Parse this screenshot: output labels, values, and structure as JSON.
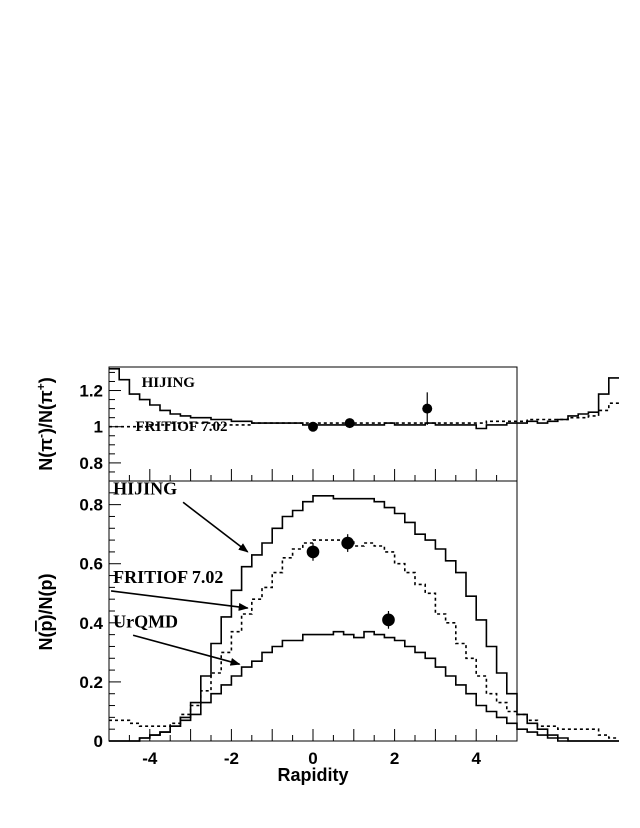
{
  "chart_data": [
    {
      "type": "line",
      "panel": "top",
      "xlabel": "",
      "ylabel": "N(π⁻)/N(π⁺)",
      "ylabel_parts": {
        "pre": "N(π",
        "sup1": "-",
        "mid": ")/N(π",
        "sup2": "+",
        "post": ")"
      },
      "xlim": [
        -5,
        5
      ],
      "ylim": [
        0.7,
        1.33
      ],
      "ytick_labels": [
        {
          "v": 0.8,
          "t": "0.8"
        },
        {
          "v": 1.0,
          "t": "1"
        },
        {
          "v": 1.2,
          "t": "1.2"
        }
      ],
      "annotations": [
        {
          "text": "HIJING",
          "x": -4.2,
          "y": 1.22
        },
        {
          "text": "FRITIOF 7.02",
          "x": -4.35,
          "y": 0.975
        }
      ],
      "series": [
        {
          "name": "HIJING",
          "style": "solid",
          "step": 0.25,
          "x0": -5,
          "values": [
            1.32,
            1.26,
            1.18,
            1.15,
            1.12,
            1.09,
            1.07,
            1.06,
            1.05,
            1.05,
            1.04,
            1.04,
            1.03,
            1.03,
            1.02,
            1.02,
            1.02,
            1.02,
            1.02,
            1.01,
            1.01,
            1.01,
            1.01,
            1.01,
            1.01,
            1.01,
            1.01,
            1.02,
            1.01,
            1.01,
            1.01,
            1.02,
            1.01,
            1.01,
            1.01,
            1.01,
            0.99,
            1.01,
            1.01,
            1.02,
            1.02,
            1.03,
            1.02,
            1.03,
            1.04,
            1.06,
            1.07,
            1.08,
            1.18,
            1.27
          ]
        },
        {
          "name": "FRITIOF 7.02",
          "style": "dotted",
          "step": 0.25,
          "x0": -5,
          "values": [
            1.0,
            1.0,
            1.0,
            1.0,
            1.01,
            1.01,
            1.02,
            1.02,
            1.02,
            1.02,
            1.01,
            1.01,
            1.01,
            1.01,
            1.02,
            1.02,
            1.02,
            1.02,
            1.02,
            1.02,
            1.02,
            1.02,
            1.02,
            1.02,
            1.02,
            1.02,
            1.02,
            1.02,
            1.02,
            1.02,
            1.02,
            1.02,
            1.02,
            1.02,
            1.02,
            1.02,
            1.02,
            1.03,
            1.03,
            1.03,
            1.03,
            1.04,
            1.04,
            1.04,
            1.04,
            1.05,
            1.05,
            1.06,
            1.09,
            1.13
          ]
        },
        {
          "name": "data",
          "style": "points",
          "marker_size": 6,
          "points": [
            {
              "x": 0.0,
              "y": 1.0,
              "err": 0.02
            },
            {
              "x": 0.9,
              "y": 1.02,
              "err": 0.02
            },
            {
              "x": 2.8,
              "y": 1.1,
              "err": 0.09
            }
          ]
        }
      ]
    },
    {
      "type": "line",
      "panel": "bottom",
      "xlabel": "Rapidity",
      "ylabel": "N(p̄)/N(p)",
      "ylabel_parts": {
        "pre": "N(",
        "bar": "p",
        "post": ")/N(p)"
      },
      "xlim": [
        -5,
        5
      ],
      "ylim": [
        0,
        0.88
      ],
      "xtick_labels": [
        {
          "v": -4,
          "t": "-4"
        },
        {
          "v": -2,
          "t": "-2"
        },
        {
          "v": 0,
          "t": "0"
        },
        {
          "v": 2,
          "t": "2"
        },
        {
          "v": 4,
          "t": "4"
        }
      ],
      "ytick_labels": [
        {
          "v": 0,
          "t": "0"
        },
        {
          "v": 0.2,
          "t": "0.2"
        },
        {
          "v": 0.4,
          "t": "0.4"
        },
        {
          "v": 0.6,
          "t": "0.6"
        },
        {
          "v": 0.8,
          "t": "0.8"
        }
      ],
      "annotations": [
        {
          "text": "HIJING",
          "x": -4.9,
          "y": 0.835,
          "arrow_to": [
            -1.6,
            0.64
          ]
        },
        {
          "text": "FRITIOF 7.02",
          "x": -4.9,
          "y": 0.535,
          "arrow_to": [
            -1.6,
            0.45
          ]
        },
        {
          "text": "UrQMD",
          "x": -4.9,
          "y": 0.385,
          "arrow_to": [
            -1.8,
            0.26
          ]
        }
      ],
      "series": [
        {
          "name": "HIJING",
          "style": "solid",
          "step": 0.25,
          "x0": -5,
          "values": [
            0.0,
            0.0,
            0.0,
            0.01,
            0.02,
            0.03,
            0.05,
            0.08,
            0.13,
            0.22,
            0.33,
            0.42,
            0.51,
            0.59,
            0.63,
            0.67,
            0.72,
            0.76,
            0.78,
            0.81,
            0.83,
            0.83,
            0.82,
            0.82,
            0.82,
            0.82,
            0.81,
            0.79,
            0.77,
            0.74,
            0.7,
            0.68,
            0.65,
            0.61,
            0.57,
            0.49,
            0.41,
            0.32,
            0.23,
            0.16,
            0.09,
            0.06,
            0.04,
            0.02,
            0.01,
            0.0,
            0.0,
            0.0,
            0.0,
            0.0
          ]
        },
        {
          "name": "FRITIOF 7.02",
          "style": "dotted",
          "step": 0.25,
          "x0": -5,
          "values": [
            0.07,
            0.07,
            0.06,
            0.05,
            0.05,
            0.05,
            0.06,
            0.09,
            0.12,
            0.17,
            0.23,
            0.3,
            0.37,
            0.43,
            0.48,
            0.52,
            0.57,
            0.62,
            0.65,
            0.67,
            0.68,
            0.68,
            0.68,
            0.68,
            0.66,
            0.67,
            0.66,
            0.64,
            0.6,
            0.57,
            0.53,
            0.5,
            0.43,
            0.4,
            0.33,
            0.28,
            0.22,
            0.16,
            0.13,
            0.1,
            0.09,
            0.07,
            0.05,
            0.05,
            0.04,
            0.04,
            0.04,
            0.04,
            0.02,
            0.01
          ]
        },
        {
          "name": "UrQMD",
          "style": "solid",
          "step": 0.25,
          "x0": -5,
          "values": [
            0.0,
            0.0,
            0.0,
            0.01,
            0.02,
            0.03,
            0.05,
            0.07,
            0.09,
            0.13,
            0.16,
            0.19,
            0.22,
            0.25,
            0.27,
            0.3,
            0.32,
            0.34,
            0.34,
            0.36,
            0.36,
            0.36,
            0.37,
            0.36,
            0.35,
            0.37,
            0.36,
            0.35,
            0.34,
            0.32,
            0.3,
            0.28,
            0.25,
            0.22,
            0.19,
            0.16,
            0.12,
            0.1,
            0.08,
            0.06,
            0.04,
            0.03,
            0.02,
            0.01,
            0.0,
            0.0,
            0.0,
            0.0,
            0.0,
            0.0
          ]
        },
        {
          "name": "data",
          "style": "points",
          "marker_size": 8,
          "points": [
            {
              "x": 0.0,
              "y": 0.64,
              "err": 0.03
            },
            {
              "x": 0.85,
              "y": 0.67,
              "err": 0.03
            },
            {
              "x": 1.85,
              "y": 0.41,
              "err": 0.03
            }
          ]
        }
      ]
    }
  ]
}
